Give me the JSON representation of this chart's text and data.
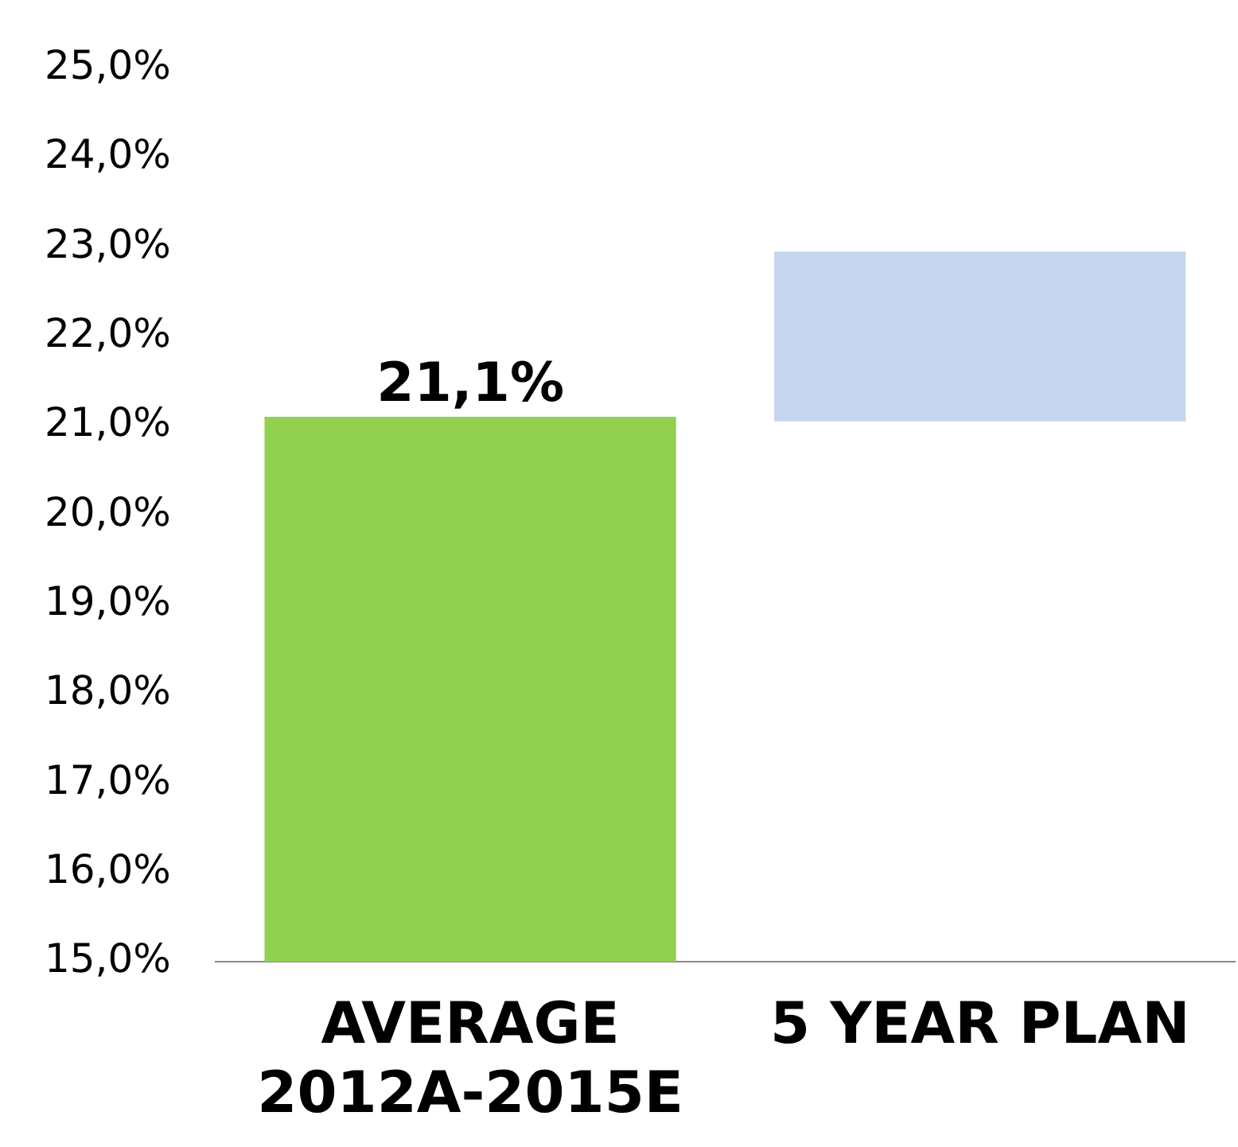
{
  "chart_data": {
    "type": "bar",
    "categories": [
      "AVERAGE\n2012A-2015E",
      "5 YEAR PLAN"
    ],
    "values": [
      21.1,
      1.9
    ],
    "base": [
      null,
      21.05
    ],
    "colors": [
      "#92d050",
      "#c6d6ee"
    ],
    "value_labels": [
      "21,1%",
      null
    ],
    "ylim": [
      15,
      25
    ],
    "yticks": [
      {
        "value": 15,
        "label": "15,0%"
      },
      {
        "value": 16,
        "label": "16,0%"
      },
      {
        "value": 17,
        "label": "17,0%"
      },
      {
        "value": 18,
        "label": "18,0%"
      },
      {
        "value": 19,
        "label": "19,0%"
      },
      {
        "value": 20,
        "label": "20,0%"
      },
      {
        "value": 21,
        "label": "21,0%"
      },
      {
        "value": 22,
        "label": "22,0%"
      },
      {
        "value": 23,
        "label": "23,0%"
      },
      {
        "value": 24,
        "label": "24,0%"
      },
      {
        "value": 25,
        "label": "25,0%"
      }
    ],
    "grid": false,
    "legend": false
  }
}
